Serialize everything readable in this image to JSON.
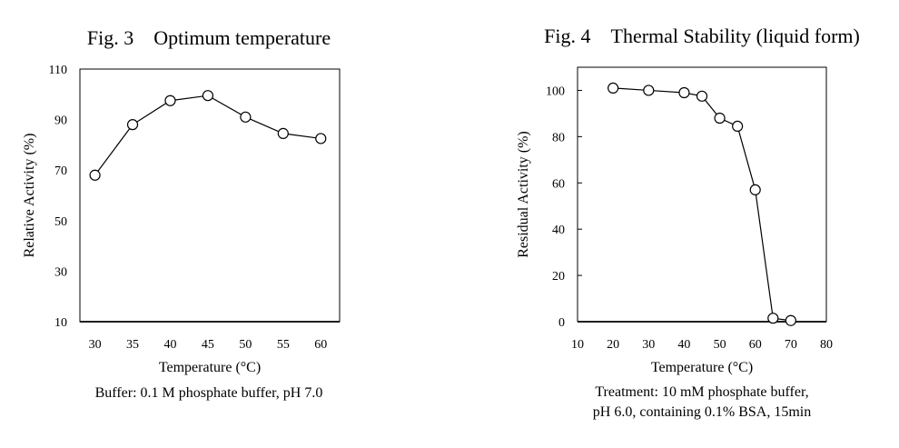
{
  "chart_data": [
    {
      "type": "line",
      "title": "Fig. 3 Optimum temperature",
      "xlabel": "Temperature (°C)",
      "ylabel": "Relative Activity (%)",
      "xticks": [
        30,
        35,
        40,
        45,
        50,
        55,
        60
      ],
      "yticks": [
        10,
        30,
        50,
        70,
        90,
        110
      ],
      "xlim": [
        28,
        62.5
      ],
      "ylim": [
        10,
        110
      ],
      "x": [
        30,
        35,
        40,
        45,
        50,
        55,
        60
      ],
      "series": [
        {
          "values": [
            68,
            88,
            97.5,
            99.5,
            91,
            84.5,
            82.5
          ]
        }
      ],
      "caption": [
        "Buffer: 0.1 M phosphate buffer, pH 7.0"
      ]
    },
    {
      "type": "line",
      "title": "Fig. 4 Thermal Stability (liquid form)",
      "xlabel": "Temperature (°C)",
      "ylabel": "Residual Activity (%)",
      "xticks": [
        10,
        20,
        30,
        40,
        50,
        60,
        70,
        80
      ],
      "yticks": [
        0,
        20,
        40,
        60,
        80,
        100
      ],
      "xlim": [
        10,
        80
      ],
      "ylim": [
        0,
        110
      ],
      "x": [
        20,
        30,
        40,
        45,
        50,
        55,
        60,
        65,
        70
      ],
      "series": [
        {
          "values": [
            101,
            100,
            99,
            97.5,
            88,
            84.5,
            57,
            1.5,
            0.5
          ]
        }
      ],
      "caption": [
        "Treatment: 10 mM phosphate buffer,",
        "pH 6.0, containing 0.1% BSA, 15min"
      ]
    }
  ]
}
